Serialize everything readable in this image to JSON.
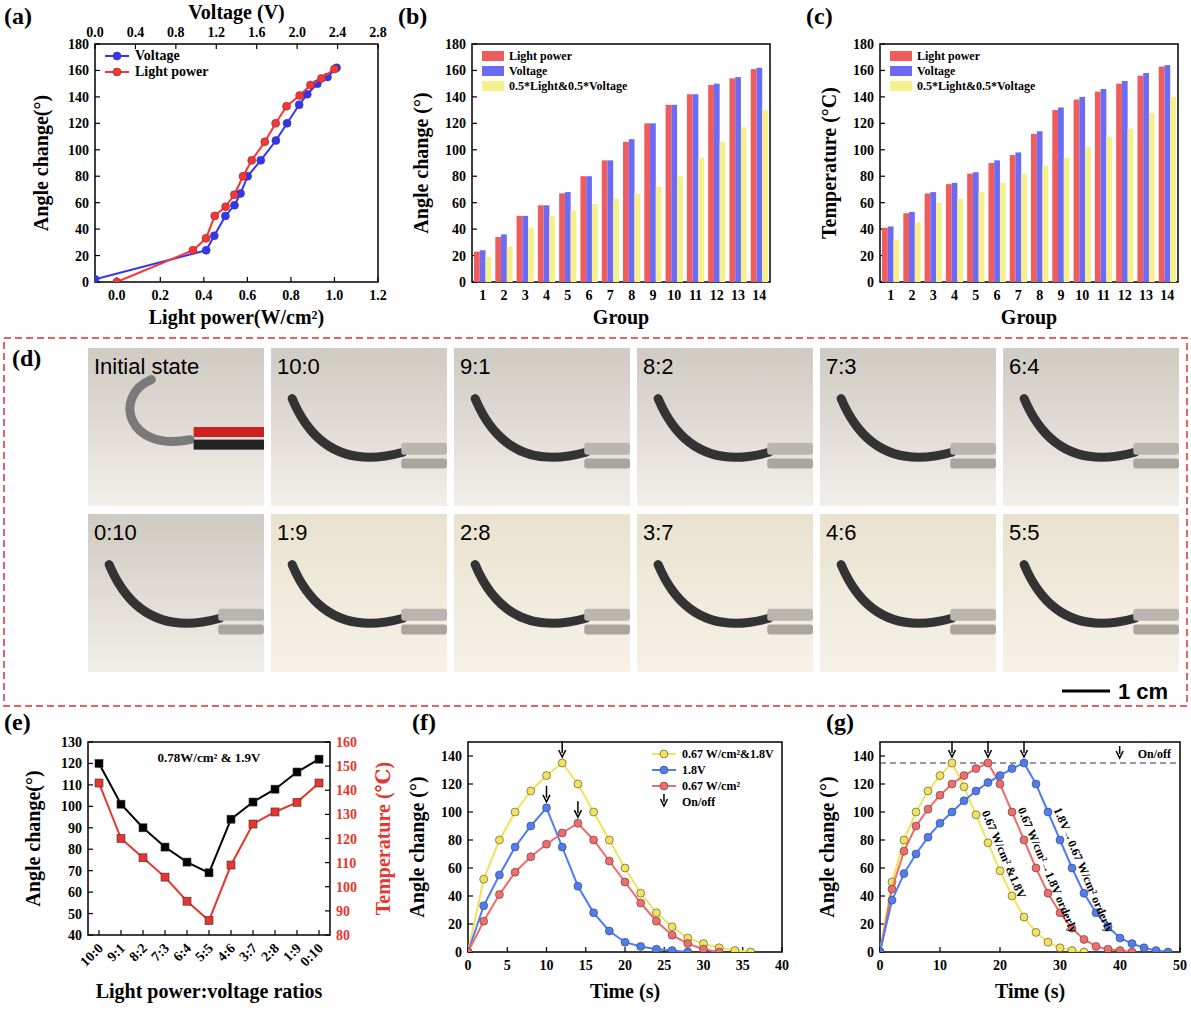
{
  "chart_data": [
    {
      "type": "line",
      "panel_label": "(a)",
      "x_label": "Light power(W/cm²)",
      "x2_label": "Voltage (V)",
      "y_label": "Angle change(°)",
      "xlim": [
        -0.1,
        1.2
      ],
      "xticks": [
        {
          "value": 0,
          "label": "0.0"
        },
        {
          "value": 0.2,
          "label": "0.2"
        },
        {
          "value": 0.4,
          "label": "0.4"
        },
        {
          "value": 0.6,
          "label": "0.6"
        },
        {
          "value": 0.8,
          "label": "0.8"
        },
        {
          "value": 1.0,
          "label": "1.0"
        },
        {
          "value": 1.2,
          "label": "1.2"
        }
      ],
      "x2lim": [
        0,
        2.8
      ],
      "x2ticks": [
        {
          "value": 0,
          "label": "0.0"
        },
        {
          "value": 0.4,
          "label": "0.4"
        },
        {
          "value": 0.8,
          "label": "0.8"
        },
        {
          "value": 1.2,
          "label": "1.2"
        },
        {
          "value": 1.6,
          "label": "1.6"
        },
        {
          "value": 2.0,
          "label": "2.0"
        },
        {
          "value": 2.4,
          "label": "2.4"
        },
        {
          "value": 2.8,
          "label": "2.8"
        }
      ],
      "ylim": [
        0,
        180
      ],
      "yticks": [
        0,
        20,
        40,
        60,
        80,
        100,
        120,
        140,
        160,
        180
      ],
      "legend": "upper left",
      "series": [
        {
          "name": "Voltage",
          "color": "#3333ff",
          "marker": "circle",
          "axis": "x2",
          "x": [
            0,
            1.1,
            1.18,
            1.29,
            1.38,
            1.44,
            1.51,
            1.64,
            1.79,
            1.9,
            2.02,
            2.1,
            2.2,
            2.3,
            2.39
          ],
          "values": [
            2,
            24,
            35,
            50,
            58,
            67,
            80,
            92,
            107,
            120,
            134,
            142,
            150,
            155,
            162
          ]
        },
        {
          "name": "Light power",
          "color": "#ff3333",
          "marker": "circle",
          "x": [
            0,
            0.35,
            0.41,
            0.45,
            0.5,
            0.54,
            0.58,
            0.62,
            0.68,
            0.73,
            0.78,
            0.84,
            0.89,
            0.94,
            1.0
          ],
          "values": [
            0,
            24,
            33,
            50,
            57,
            66,
            80,
            92,
            106,
            120,
            133,
            141,
            149,
            154,
            161
          ]
        }
      ]
    },
    {
      "type": "bar",
      "panel_label": "(b)",
      "x_label": "Group",
      "y_label": "Angle change (°)",
      "categories": [
        "1",
        "2",
        "3",
        "4",
        "5",
        "6",
        "7",
        "8",
        "9",
        "10",
        "11",
        "12",
        "13",
        "14"
      ],
      "ylim": [
        0,
        180
      ],
      "yticks": [
        0,
        20,
        40,
        60,
        80,
        100,
        120,
        140,
        160,
        180
      ],
      "legend": "upper left",
      "series": [
        {
          "name": "Light power",
          "color": "#f05c5c",
          "values": [
            23,
            34,
            50,
            58,
            67,
            80,
            92,
            106,
            120,
            134,
            142,
            149,
            154,
            161
          ]
        },
        {
          "name": "Voltage",
          "color": "#6b6bf5",
          "values": [
            24,
            36,
            50,
            58,
            68,
            80,
            92,
            108,
            120,
            134,
            142,
            150,
            155,
            162
          ]
        },
        {
          "name": "0.5*Light&0.5*Voltage",
          "color": "#f5f08c",
          "values": [
            19,
            27,
            41,
            50,
            54,
            59,
            63,
            67,
            72,
            80,
            94,
            106,
            117,
            130
          ]
        }
      ]
    },
    {
      "type": "bar",
      "panel_label": "(c)",
      "x_label": "Group",
      "y_label": "Temperature (°C)",
      "categories": [
        "1",
        "2",
        "3",
        "4",
        "5",
        "6",
        "7",
        "8",
        "9",
        "10",
        "11",
        "12",
        "13",
        "14"
      ],
      "ylim": [
        0,
        180
      ],
      "yticks": [
        0,
        20,
        40,
        60,
        80,
        100,
        120,
        140,
        160,
        180
      ],
      "legend": "upper left",
      "series": [
        {
          "name": "Light power",
          "color": "#f05c5c",
          "values": [
            41,
            52,
            67,
            74,
            82,
            90,
            96,
            112,
            130,
            138,
            144,
            150,
            156,
            163
          ]
        },
        {
          "name": "Voltage",
          "color": "#6b6bf5",
          "values": [
            42,
            53,
            68,
            75,
            83,
            92,
            98,
            114,
            132,
            140,
            146,
            152,
            158,
            164
          ]
        },
        {
          "name": "0.5*Light&0.5*Voltage",
          "color": "#f5f08c",
          "values": [
            32,
            45,
            60,
            63,
            68,
            75,
            82,
            88,
            94,
            102,
            110,
            116,
            128,
            140
          ]
        }
      ]
    },
    {
      "type": "line",
      "panel_label": "(e)",
      "x_label": "Light power:voltage ratios",
      "y_label": "Angle change(°)",
      "y2_label": "Temperature (℃)",
      "annotation": "0.78W/cm² & 1.9V",
      "categories": [
        "10:0",
        "9:1",
        "8:2",
        "7:3",
        "6:4",
        "5:5",
        "4:6",
        "3:7",
        "2:8",
        "1:9",
        "0:10"
      ],
      "ylim": [
        40,
        130
      ],
      "yticks": [
        40,
        50,
        60,
        70,
        80,
        90,
        100,
        110,
        120,
        130
      ],
      "y2lim": [
        80,
        160
      ],
      "y2ticks": [
        80,
        90,
        100,
        110,
        120,
        130,
        140,
        150,
        160
      ],
      "series": [
        {
          "color": "#000000",
          "marker": "square",
          "values": [
            120,
            101,
            90,
            81,
            74,
            69,
            94,
            102,
            108,
            116,
            122
          ]
        },
        {
          "color": "#e8352d",
          "marker": "square",
          "axis": "y2",
          "values": [
            143,
            120,
            112,
            104,
            94,
            86,
            109,
            126,
            131,
            135,
            143
          ]
        }
      ]
    },
    {
      "type": "line",
      "panel_label": "(f)",
      "x_label": "Time (s)",
      "y_label": "Angle change (°)",
      "xlim": [
        0,
        40
      ],
      "xticks": [
        0,
        5,
        10,
        15,
        20,
        25,
        30,
        35,
        40
      ],
      "ylim": [
        0,
        150
      ],
      "yticks": [
        0,
        20,
        40,
        60,
        80,
        100,
        120,
        140
      ],
      "legend": "upper right",
      "marker_label": "On/off",
      "series": [
        {
          "name": "0.67 W/cm²&1.8V",
          "color": "#f2e25a",
          "marker": "circle",
          "off_time": 12,
          "x": [
            0,
            2,
            4,
            6,
            8,
            10,
            12,
            14,
            16,
            18,
            20,
            22,
            24,
            26,
            28,
            30,
            32,
            34,
            36
          ],
          "values": [
            0,
            52,
            80,
            100,
            115,
            126,
            135,
            120,
            100,
            80,
            60,
            42,
            28,
            18,
            10,
            6,
            3,
            1,
            0
          ]
        },
        {
          "name": "1.8V",
          "color": "#4d7cf5",
          "marker": "circle",
          "off_time": 10,
          "x": [
            0,
            2,
            4,
            6,
            8,
            10,
            12,
            14,
            16,
            18,
            20,
            22,
            24,
            26,
            28
          ],
          "values": [
            0,
            33,
            55,
            75,
            90,
            103,
            75,
            47,
            28,
            15,
            7,
            4,
            2,
            1,
            0
          ]
        },
        {
          "name": "0.67 W/cm²",
          "color": "#f26b6b",
          "marker": "circle",
          "off_time": 14,
          "x": [
            0,
            2,
            4,
            6,
            8,
            10,
            12,
            14,
            16,
            18,
            20,
            22,
            24,
            26,
            28,
            30,
            32
          ],
          "values": [
            0,
            22,
            41,
            57,
            68,
            77,
            85,
            92,
            80,
            65,
            50,
            35,
            22,
            12,
            6,
            2,
            0
          ]
        }
      ]
    },
    {
      "type": "line",
      "panel_label": "(g)",
      "x_label": "Time (s)",
      "y_label": "Angle change (°)",
      "xlim": [
        0,
        50
      ],
      "xticks": [
        0,
        10,
        20,
        30,
        40,
        50
      ],
      "ylim": [
        0,
        150
      ],
      "yticks": [
        0,
        20,
        40,
        60,
        80,
        100,
        120,
        140
      ],
      "threshold": 135,
      "legend": "upper right",
      "marker_label": "On/off",
      "series": [
        {
          "label": "0.67 W/cm² &1.8V",
          "color": "#f2e25a",
          "marker": "circle",
          "off_time": 12,
          "x": [
            0,
            2,
            4,
            6,
            8,
            10,
            12,
            14,
            16,
            18,
            20,
            22,
            24,
            26,
            28,
            30,
            32,
            34
          ],
          "values": [
            0,
            50,
            80,
            100,
            115,
            126,
            135,
            118,
            98,
            78,
            58,
            40,
            25,
            14,
            7,
            3,
            1,
            0
          ]
        },
        {
          "label": "0.67 W/cm²→1.8V orderly",
          "color": "#f26b6b",
          "marker": "circle",
          "off_time": 18,
          "x": [
            0,
            2,
            4,
            6,
            8,
            10,
            12,
            14,
            16,
            18,
            20,
            22,
            24,
            26,
            28,
            30,
            32,
            34,
            36,
            38,
            40,
            42
          ],
          "values": [
            0,
            45,
            72,
            90,
            102,
            112,
            120,
            126,
            131,
            135,
            120,
            100,
            80,
            60,
            42,
            28,
            17,
            9,
            4,
            2,
            1,
            0
          ]
        },
        {
          "label": "1.8V→0.67 W/cm² orderly",
          "color": "#4d7cf5",
          "marker": "circle",
          "off_time": 24,
          "x": [
            0,
            2,
            4,
            6,
            8,
            10,
            12,
            14,
            16,
            18,
            20,
            22,
            24,
            26,
            28,
            30,
            32,
            34,
            36,
            38,
            40,
            42,
            44,
            46,
            48
          ],
          "values": [
            0,
            37,
            56,
            70,
            82,
            92,
            100,
            108,
            115,
            121,
            126,
            131,
            135,
            120,
            100,
            80,
            60,
            42,
            28,
            18,
            10,
            6,
            3,
            1,
            0
          ]
        }
      ]
    }
  ],
  "photo_panel": {
    "panel_label": "(d)",
    "tiles": [
      "Initial state",
      "10:0",
      "9:1",
      "8:2",
      "7:3",
      "6:4",
      "0:10",
      "1:9",
      "2:8",
      "3:7",
      "4:6",
      "5:5"
    ],
    "scale_bar": "1 cm"
  }
}
